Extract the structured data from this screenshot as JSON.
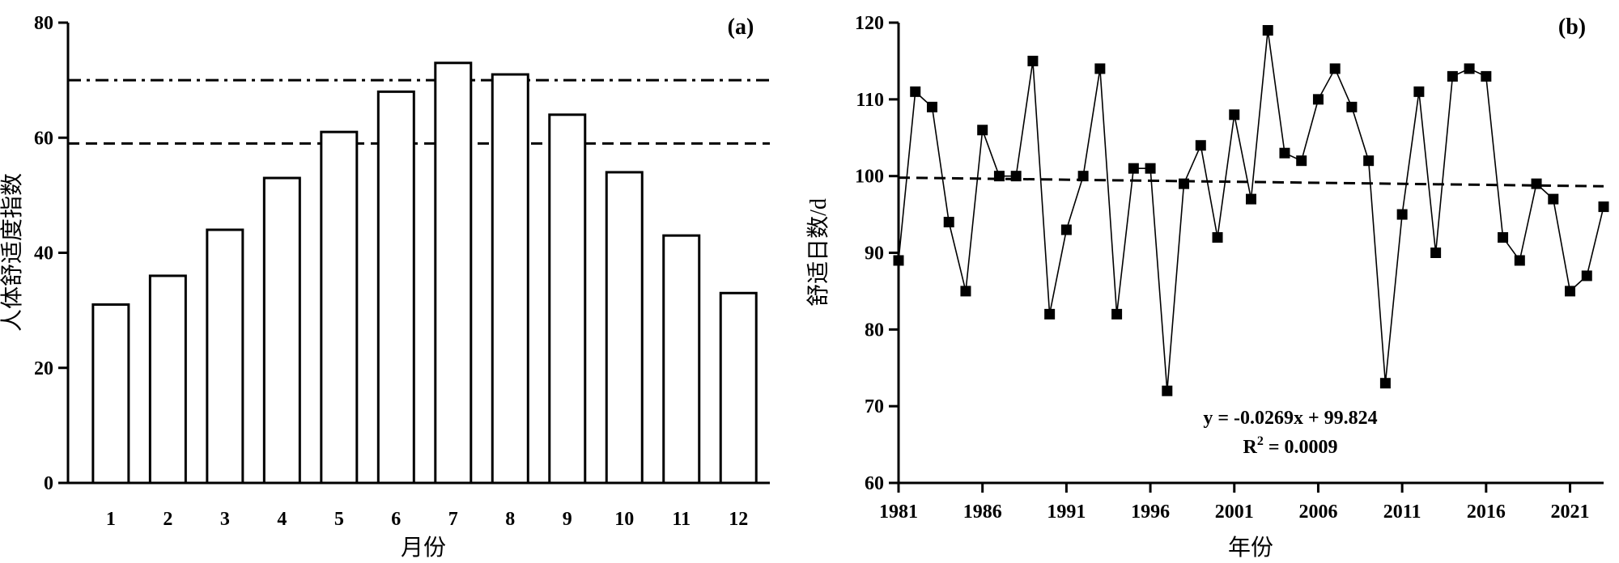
{
  "chart_data": [
    {
      "type": "bar",
      "panel_label": "(a)",
      "xlabel": "月份",
      "ylabel": "人体舒适度指数",
      "categories": [
        "1",
        "2",
        "3",
        "4",
        "5",
        "6",
        "7",
        "8",
        "9",
        "10",
        "11",
        "12"
      ],
      "values": [
        31,
        36,
        44,
        53,
        61,
        68,
        73,
        71,
        64,
        54,
        43,
        33
      ],
      "ylim": [
        0,
        80
      ],
      "yticks": [
        "0",
        "20",
        "40",
        "60",
        "80"
      ],
      "reference_lines": [
        {
          "y": 70,
          "style": "dash-dot"
        },
        {
          "y": 59,
          "style": "dashed"
        }
      ],
      "grid": false,
      "bar_fill": "#ffffff",
      "bar_stroke": "#000000"
    },
    {
      "type": "line",
      "panel_label": "(b)",
      "xlabel": "年份",
      "ylabel": "舒适日数/d",
      "x": [
        1981,
        1982,
        1983,
        1984,
        1985,
        1986,
        1987,
        1988,
        1989,
        1990,
        1991,
        1992,
        1993,
        1994,
        1995,
        1996,
        1997,
        1998,
        1999,
        2000,
        2001,
        2002,
        2003,
        2004,
        2005,
        2006,
        2007,
        2008,
        2009,
        2010,
        2011,
        2012,
        2013,
        2014,
        2015,
        2016,
        2017,
        2018,
        2019,
        2020,
        2021,
        2022,
        2023
      ],
      "y": [
        89,
        111,
        109,
        94,
        85,
        106,
        100,
        100,
        115,
        82,
        93,
        100,
        114,
        82,
        101,
        101,
        72,
        99,
        104,
        92,
        108,
        97,
        119,
        103,
        102,
        110,
        114,
        109,
        102,
        73,
        95,
        111,
        90,
        113,
        114,
        113,
        92,
        89,
        99,
        97,
        85,
        87,
        96
      ],
      "xlim": [
        1981,
        2023
      ],
      "ylim": [
        60,
        120
      ],
      "xticks": [
        "1981",
        "1986",
        "1991",
        "1996",
        "2001",
        "2006",
        "2011",
        "2016",
        "2021"
      ],
      "yticks": [
        "60",
        "70",
        "80",
        "90",
        "100",
        "110",
        "120"
      ],
      "trend": {
        "slope": -0.0269,
        "intercept": 99.824,
        "style": "dashed"
      },
      "annotations": {
        "equation": "y = -0.0269x + 99.824",
        "r2_prefix": "R",
        "r2_sup": "2",
        "r2_suffix": " = 0.0009"
      },
      "marker": "square",
      "grid": false
    }
  ]
}
